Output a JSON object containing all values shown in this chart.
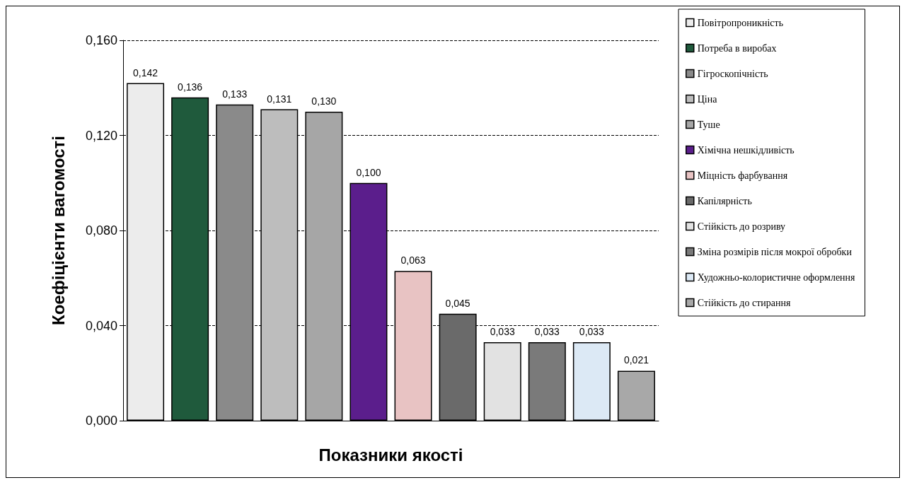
{
  "chart_data": {
    "type": "bar",
    "xlabel": "Показники якості",
    "ylabel": "Коефіцієнти вагомості",
    "categories": [
      null,
      null,
      null,
      null,
      null,
      null,
      null,
      null,
      null,
      null,
      null,
      null
    ],
    "series": [
      {
        "name": "Повітропроникність",
        "color": "#ececec",
        "values": [
          0.142,
          null,
          null,
          null,
          null,
          null,
          null,
          null,
          null,
          null,
          null,
          null
        ],
        "value_labels": [
          "0,142",
          null,
          null,
          null,
          null,
          null,
          null,
          null,
          null,
          null,
          null,
          null
        ]
      },
      {
        "name": "Потреба в виробах",
        "color": "#1f5a3c",
        "values": [
          null,
          0.136,
          null,
          null,
          null,
          null,
          null,
          null,
          null,
          null,
          null,
          null
        ],
        "value_labels": [
          null,
          "0,136",
          null,
          null,
          null,
          null,
          null,
          null,
          null,
          null,
          null,
          null
        ]
      },
      {
        "name": "Гігроскопічність",
        "color": "#8a8a8a",
        "values": [
          null,
          null,
          0.133,
          null,
          null,
          null,
          null,
          null,
          null,
          null,
          null,
          null
        ],
        "value_labels": [
          null,
          null,
          "0,133",
          null,
          null,
          null,
          null,
          null,
          null,
          null,
          null,
          null
        ]
      },
      {
        "name": "Ціна",
        "color": "#bdbdbd",
        "values": [
          null,
          null,
          null,
          0.131,
          null,
          null,
          null,
          null,
          null,
          null,
          null,
          null
        ],
        "value_labels": [
          null,
          null,
          null,
          "0,131",
          null,
          null,
          null,
          null,
          null,
          null,
          null,
          null
        ]
      },
      {
        "name": "Туше",
        "color": "#a6a6a6",
        "values": [
          null,
          null,
          null,
          null,
          0.13,
          null,
          null,
          null,
          null,
          null,
          null,
          null
        ],
        "value_labels": [
          null,
          null,
          null,
          null,
          "0,130",
          null,
          null,
          null,
          null,
          null,
          null,
          null
        ]
      },
      {
        "name": "Хімічна нешкідливість",
        "color": "#5b1e8c",
        "values": [
          null,
          null,
          null,
          null,
          null,
          0.1,
          null,
          null,
          null,
          null,
          null,
          null
        ],
        "value_labels": [
          null,
          null,
          null,
          null,
          null,
          "0,100",
          null,
          null,
          null,
          null,
          null,
          null
        ]
      },
      {
        "name": "Міцність фарбування",
        "color": "#e8c3c3",
        "values": [
          null,
          null,
          null,
          null,
          null,
          null,
          0.063,
          null,
          null,
          null,
          null,
          null
        ],
        "value_labels": [
          null,
          null,
          null,
          null,
          null,
          null,
          "0,063",
          null,
          null,
          null,
          null,
          null
        ]
      },
      {
        "name": "Капілярність",
        "color": "#6a6a6a",
        "values": [
          null,
          null,
          null,
          null,
          null,
          null,
          null,
          0.045,
          null,
          null,
          null,
          null
        ],
        "value_labels": [
          null,
          null,
          null,
          null,
          null,
          null,
          null,
          "0,045",
          null,
          null,
          null,
          null
        ]
      },
      {
        "name": "Стійкість до розриву",
        "color": "#e2e2e2",
        "values": [
          null,
          null,
          null,
          null,
          null,
          null,
          null,
          null,
          0.033,
          null,
          null,
          null
        ],
        "value_labels": [
          null,
          null,
          null,
          null,
          null,
          null,
          null,
          null,
          "0,033",
          null,
          null,
          null
        ]
      },
      {
        "name": "Зміна розмірів після мокрої обробки",
        "color": "#7a7a7a",
        "values": [
          null,
          null,
          null,
          null,
          null,
          null,
          null,
          null,
          null,
          0.033,
          null,
          null
        ],
        "value_labels": [
          null,
          null,
          null,
          null,
          null,
          null,
          null,
          null,
          null,
          "0,033",
          null,
          null
        ]
      },
      {
        "name": "Художньо-колористичне оформлення",
        "color": "#dce9f5",
        "values": [
          null,
          null,
          null,
          null,
          null,
          null,
          null,
          null,
          null,
          null,
          0.033,
          null
        ],
        "value_labels": [
          null,
          null,
          null,
          null,
          null,
          null,
          null,
          null,
          null,
          null,
          "0,033",
          null
        ]
      },
      {
        "name": "Стійкість до стирання",
        "color": "#a8a8a8",
        "values": [
          null,
          null,
          null,
          null,
          null,
          null,
          null,
          null,
          null,
          null,
          null,
          0.021
        ],
        "value_labels": [
          null,
          null,
          null,
          null,
          null,
          null,
          null,
          null,
          null,
          null,
          null,
          "0,021"
        ]
      }
    ],
    "ylim": [
      0,
      0.16
    ],
    "yticks": [
      {
        "value": 0,
        "label": "0,000"
      },
      {
        "value": 0.04,
        "label": "0,040"
      },
      {
        "value": 0.08,
        "label": "0,080"
      },
      {
        "value": 0.12,
        "label": "0,120"
      },
      {
        "value": 0.16,
        "label": "0,160"
      }
    ],
    "grid": "y",
    "line_style": "dashed",
    "legend": "right"
  }
}
